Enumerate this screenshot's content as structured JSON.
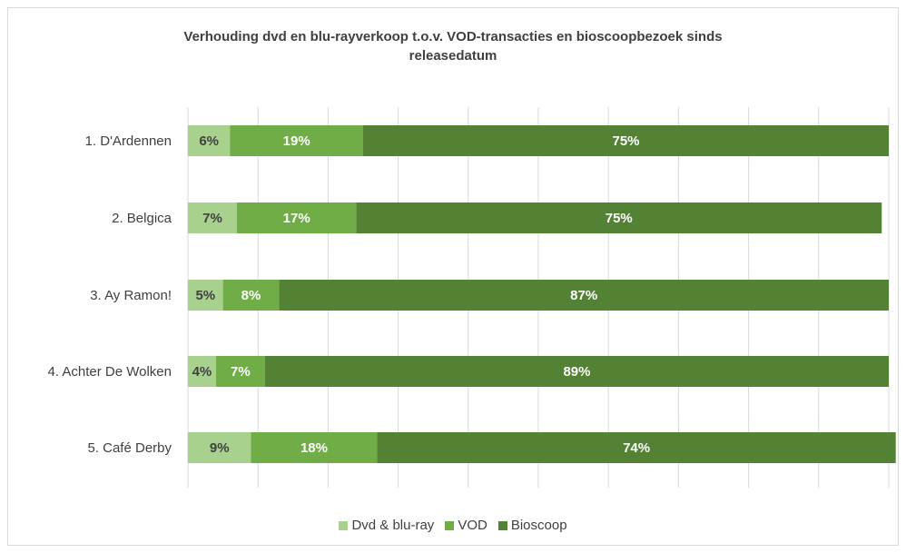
{
  "chart_data": {
    "type": "bar",
    "orientation": "horizontal",
    "stacked": true,
    "title_lines": [
      "Verhouding dvd en blu-rayverkoop t.o.v. VOD-transacties en bioscoopbezoek sinds",
      "releasedatum"
    ],
    "categories": [
      "1. D'Ardennen",
      "2. Belgica",
      "3. Ay Ramon!",
      "4. Achter De Wolken",
      "5. Café Derby"
    ],
    "series": [
      {
        "name": "Dvd & blu-ray",
        "color": "#a9d18e",
        "values": [
          6,
          7,
          5,
          4,
          9
        ],
        "labels": [
          "6%",
          "7%",
          "5%",
          "4%",
          "9%"
        ]
      },
      {
        "name": "VOD",
        "color": "#70ad47",
        "values": [
          19,
          17,
          8,
          7,
          18
        ],
        "labels": [
          "19%",
          "17%",
          "8%",
          "7%",
          "18%"
        ]
      },
      {
        "name": "Bioscoop",
        "color": "#548235",
        "values": [
          75,
          75,
          87,
          89,
          74
        ],
        "labels": [
          "75%",
          "75%",
          "87%",
          "89%",
          "74%"
        ]
      }
    ],
    "xlim": [
      0,
      100
    ],
    "grid": true,
    "legend_position": "bottom"
  }
}
